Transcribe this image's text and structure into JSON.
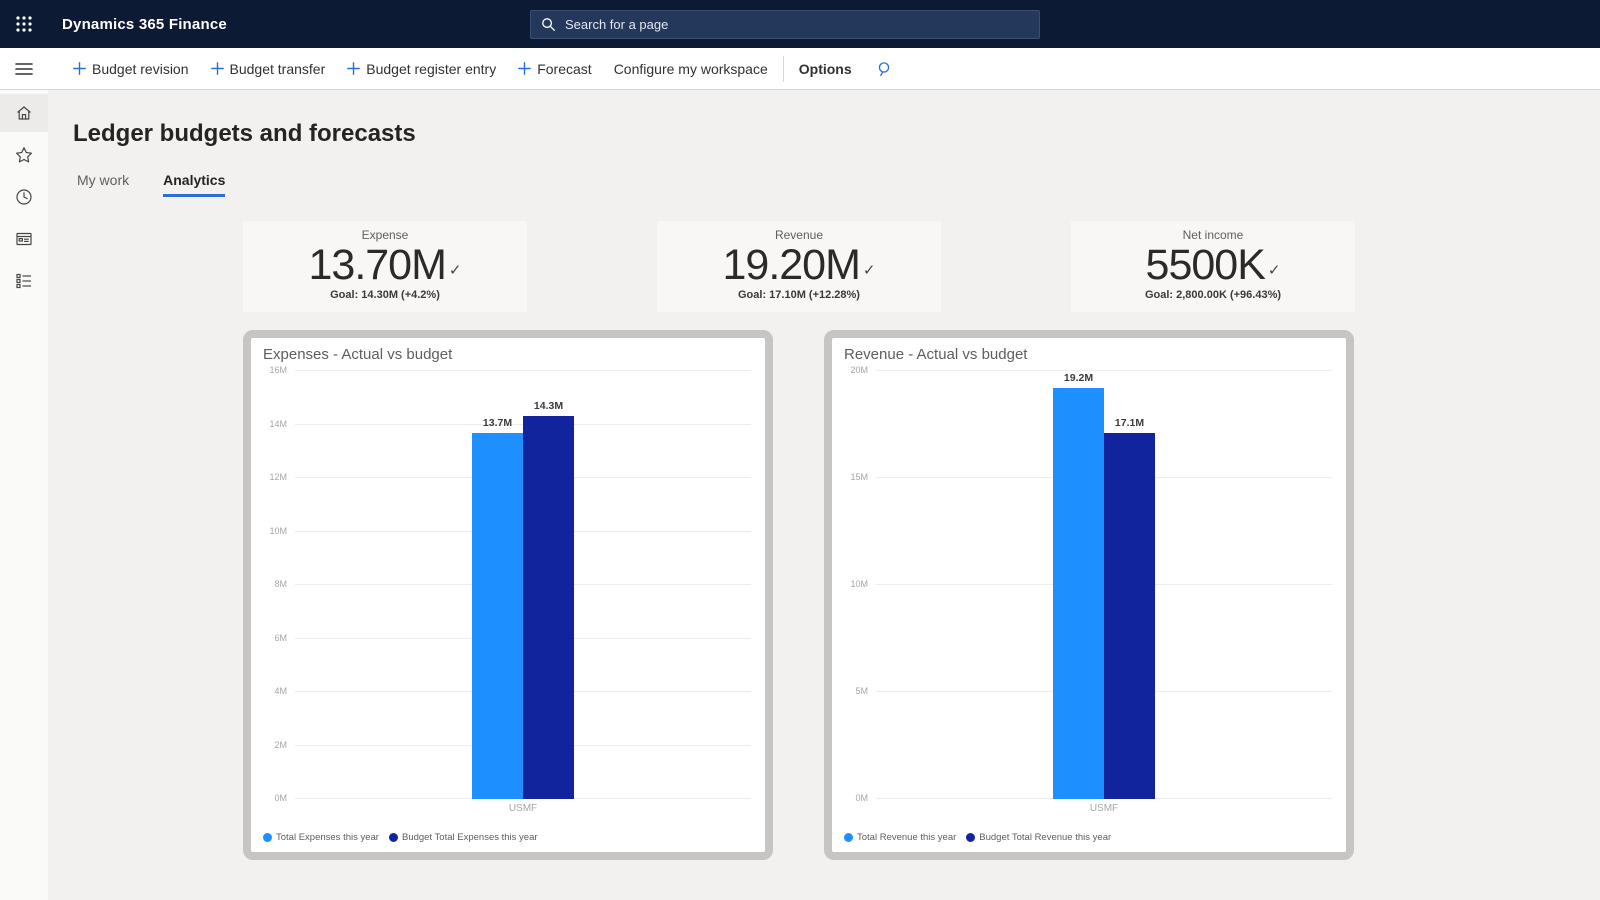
{
  "topbar": {
    "app_title": "Dynamics 365 Finance",
    "search_placeholder": "Search for a page"
  },
  "actionbar": {
    "buttons": [
      {
        "label": "Budget revision",
        "has_plus": true
      },
      {
        "label": "Budget transfer",
        "has_plus": true
      },
      {
        "label": "Budget register entry",
        "has_plus": true
      },
      {
        "label": "Forecast",
        "has_plus": true
      },
      {
        "label": "Configure my workspace",
        "has_plus": false
      }
    ],
    "options_label": "Options"
  },
  "sidebar": {
    "icons": [
      "hamburger-icon",
      "home-icon",
      "star-icon",
      "clock-icon",
      "workspace-icon",
      "modules-icon"
    ],
    "active_item": "home"
  },
  "page": {
    "title": "Ledger budgets and forecasts",
    "tabs": [
      {
        "label": "My work",
        "active": false
      },
      {
        "label": "Analytics",
        "active": true
      }
    ]
  },
  "kpis": [
    {
      "title": "Expense",
      "value": "13.70M",
      "goal": "Goal: 14.30M (+4.2%)",
      "status": "goal-met"
    },
    {
      "title": "Revenue",
      "value": "19.20M",
      "goal": "Goal: 17.10M (+12.28%)",
      "status": "goal-met"
    },
    {
      "title": "Net income",
      "value": "5500K",
      "goal": "Goal: 2,800.00K (+96.43%)",
      "status": "goal-met"
    }
  ],
  "chart_data": [
    {
      "type": "bar",
      "title": "Expenses - Actual vs budget",
      "categories": [
        "USMF"
      ],
      "series": [
        {
          "name": "Total Expenses this year",
          "color": "#1E8FFF",
          "values": [
            13.7
          ],
          "value_labels": [
            "13.7M"
          ]
        },
        {
          "name": "Budget Total Expenses this year",
          "color": "#12239E",
          "values": [
            14.3
          ],
          "value_labels": [
            "14.3M"
          ]
        }
      ],
      "ylim": [
        0,
        16
      ],
      "yticks": [
        0,
        2,
        4,
        6,
        8,
        10,
        12,
        14,
        16
      ],
      "ytick_suffix": "M",
      "grid": true,
      "legend_position": "bottom",
      "xlabel": "",
      "ylabel": ""
    },
    {
      "type": "bar",
      "title": "Revenue - Actual vs budget",
      "categories": [
        "USMF"
      ],
      "series": [
        {
          "name": "Total Revenue this year",
          "color": "#1E8FFF",
          "values": [
            19.2
          ],
          "value_labels": [
            "19.2M"
          ]
        },
        {
          "name": "Budget Total Revenue this year",
          "color": "#12239E",
          "values": [
            17.1
          ],
          "value_labels": [
            "17.1M"
          ]
        }
      ],
      "ylim": [
        0,
        20
      ],
      "yticks": [
        0,
        5,
        10,
        15,
        20
      ],
      "ytick_suffix": "M",
      "grid": true,
      "legend_position": "bottom",
      "xlabel": "",
      "ylabel": ""
    }
  ],
  "colors": {
    "topbar_bg": "#0c1a33",
    "accent_blue": "#2b6fd6",
    "bar_actual": "#1E8FFF",
    "bar_budget": "#12239E",
    "content_bg": "#f2f1ef",
    "card_bg": "#f8f7f5",
    "chart_frame": "#c7c5c3"
  }
}
